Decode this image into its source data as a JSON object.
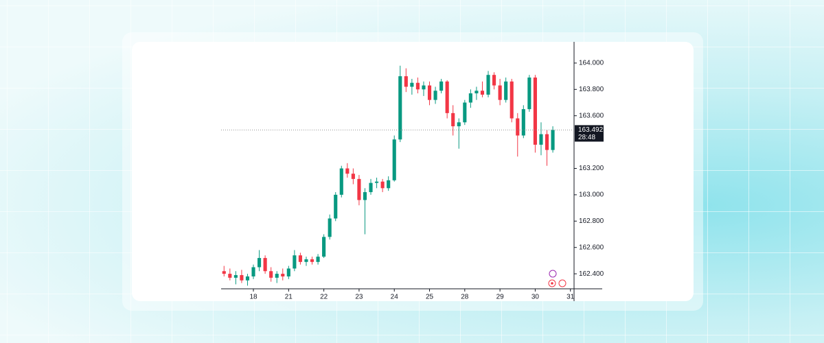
{
  "chart_data": {
    "type": "candlestick",
    "x": [
      0,
      1,
      2,
      3,
      4,
      5,
      6,
      7,
      8,
      9,
      10,
      11,
      12,
      13,
      14,
      15,
      16,
      17,
      18,
      19,
      20,
      21,
      22,
      23,
      24,
      25,
      26,
      27,
      28,
      29,
      30,
      31,
      32,
      33,
      34,
      35,
      36,
      37,
      38,
      39,
      40,
      41,
      42,
      43,
      44,
      45,
      46,
      47,
      48,
      49,
      50,
      51,
      52,
      53,
      54,
      55,
      56
    ],
    "open": [
      162.42,
      162.4,
      162.37,
      162.39,
      162.35,
      162.38,
      162.45,
      162.52,
      162.42,
      162.37,
      162.4,
      162.38,
      162.44,
      162.54,
      162.49,
      162.51,
      162.49,
      162.53,
      162.68,
      162.82,
      163.0,
      163.2,
      163.16,
      163.12,
      162.96,
      163.02,
      163.09,
      163.1,
      163.05,
      163.11,
      163.42,
      163.9,
      163.82,
      163.85,
      163.8,
      163.83,
      163.72,
      163.79,
      163.86,
      163.62,
      163.52,
      163.55,
      163.7,
      163.77,
      163.79,
      163.76,
      163.91,
      163.83,
      163.72,
      163.86,
      163.58,
      163.45,
      163.65,
      163.89,
      163.38,
      163.46,
      163.34
    ],
    "high": [
      162.46,
      162.44,
      162.42,
      162.43,
      162.4,
      162.47,
      162.58,
      162.54,
      162.45,
      162.42,
      162.44,
      162.46,
      162.58,
      162.56,
      162.53,
      162.53,
      162.55,
      162.7,
      162.85,
      163.02,
      163.22,
      163.24,
      163.2,
      163.15,
      163.05,
      163.12,
      163.13,
      163.12,
      163.14,
      163.45,
      163.98,
      163.96,
      163.88,
      163.89,
      163.86,
      163.86,
      163.82,
      163.88,
      163.87,
      163.68,
      163.58,
      163.72,
      163.8,
      163.82,
      163.86,
      163.94,
      163.93,
      163.88,
      163.89,
      163.88,
      163.62,
      163.68,
      163.91,
      163.91,
      163.55,
      163.49,
      163.52
    ],
    "low": [
      162.38,
      162.35,
      162.32,
      162.33,
      162.31,
      162.36,
      162.42,
      162.4,
      162.34,
      162.33,
      162.35,
      162.36,
      162.42,
      162.47,
      162.46,
      162.47,
      162.47,
      162.52,
      162.66,
      162.8,
      162.98,
      163.13,
      163.08,
      162.92,
      162.7,
      163.0,
      163.05,
      163.02,
      163.03,
      163.1,
      163.4,
      163.78,
      163.76,
      163.77,
      163.75,
      163.68,
      163.69,
      163.77,
      163.58,
      163.45,
      163.35,
      163.53,
      163.66,
      163.72,
      163.74,
      163.74,
      163.8,
      163.68,
      163.7,
      163.55,
      163.29,
      163.43,
      163.63,
      163.32,
      163.3,
      163.22,
      163.32
    ],
    "close": [
      162.4,
      162.37,
      162.39,
      162.35,
      162.38,
      162.45,
      162.52,
      162.42,
      162.37,
      162.4,
      162.38,
      162.44,
      162.54,
      162.49,
      162.51,
      162.49,
      162.53,
      162.68,
      162.82,
      163.0,
      163.2,
      163.16,
      163.12,
      162.96,
      163.02,
      163.09,
      163.1,
      163.05,
      163.11,
      163.42,
      163.9,
      163.82,
      163.85,
      163.8,
      163.83,
      163.72,
      163.79,
      163.86,
      163.62,
      163.52,
      163.55,
      163.7,
      163.77,
      163.79,
      163.76,
      163.91,
      163.83,
      163.72,
      163.86,
      163.58,
      163.45,
      163.65,
      163.89,
      163.38,
      163.46,
      163.34,
      163.492
    ],
    "up_color": "#089981",
    "down_color": "#f23645",
    "xlim": [
      -0.5,
      59.5
    ],
    "xticks": [
      {
        "value": 5,
        "label": "18"
      },
      {
        "value": 11,
        "label": "21"
      },
      {
        "value": 17,
        "label": "22"
      },
      {
        "value": 23,
        "label": "23"
      },
      {
        "value": 29,
        "label": "24"
      },
      {
        "value": 35,
        "label": "25"
      },
      {
        "value": 41,
        "label": "28"
      },
      {
        "value": 47,
        "label": "29"
      },
      {
        "value": 53,
        "label": "30"
      },
      {
        "value": 59,
        "label": "31"
      }
    ],
    "ylim": [
      162.286,
      164.161
    ],
    "yticks": [
      {
        "value": 162.4,
        "label": "162.400"
      },
      {
        "value": 162.6,
        "label": "162.600"
      },
      {
        "value": 162.8,
        "label": "162.800"
      },
      {
        "value": 163,
        "label": "163.000"
      },
      {
        "value": 163.2,
        "label": "163.200"
      },
      {
        "value": 163.6,
        "label": "163.600"
      },
      {
        "value": 163.8,
        "label": "163.800"
      },
      {
        "value": 164,
        "label": "164.000"
      }
    ],
    "last_price": 163.492,
    "countdown": "28:48"
  }
}
